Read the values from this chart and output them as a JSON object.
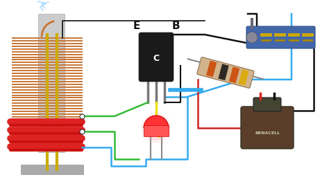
{
  "bg_color": "#ffffff",
  "wire_colors": {
    "green": "#33bb33",
    "blue": "#33aaee",
    "yellow": "#eedd00",
    "black": "#111111",
    "red": "#cc2222",
    "gray": "#888888"
  },
  "label_E": "E",
  "label_B": "B",
  "label_C": "C",
  "figsize": [
    4.74,
    2.66
  ],
  "dpi": 100
}
